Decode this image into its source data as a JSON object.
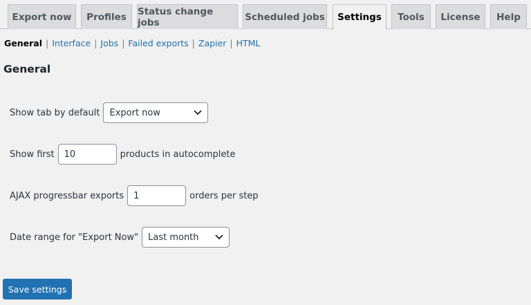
{
  "tabs": [
    "Export now",
    "Profiles",
    "Status change jobs",
    "Scheduled jobs",
    "Settings",
    "Tools",
    "License",
    "Help"
  ],
  "active_tab": "Settings",
  "subnav": [
    "General",
    "Interface",
    "Jobs",
    "Failed exports",
    "Zapier",
    "HTML"
  ],
  "subnav_separator": "|",
  "heading": "General",
  "settings": {
    "show_tab_label": "Show tab by default",
    "show_tab_value": "Export now",
    "show_first_label": "Show first",
    "show_first_value": "10",
    "show_first_suffix": "products in autocomplete",
    "ajax_label": "AJAX progressbar exports",
    "ajax_value": "1",
    "ajax_suffix": "orders per step",
    "date_range_label": "Date range for \"Export Now\"",
    "date_range_value": "Last month"
  },
  "save_label": "Save settings",
  "colors": {
    "accent": "#2271b1"
  }
}
